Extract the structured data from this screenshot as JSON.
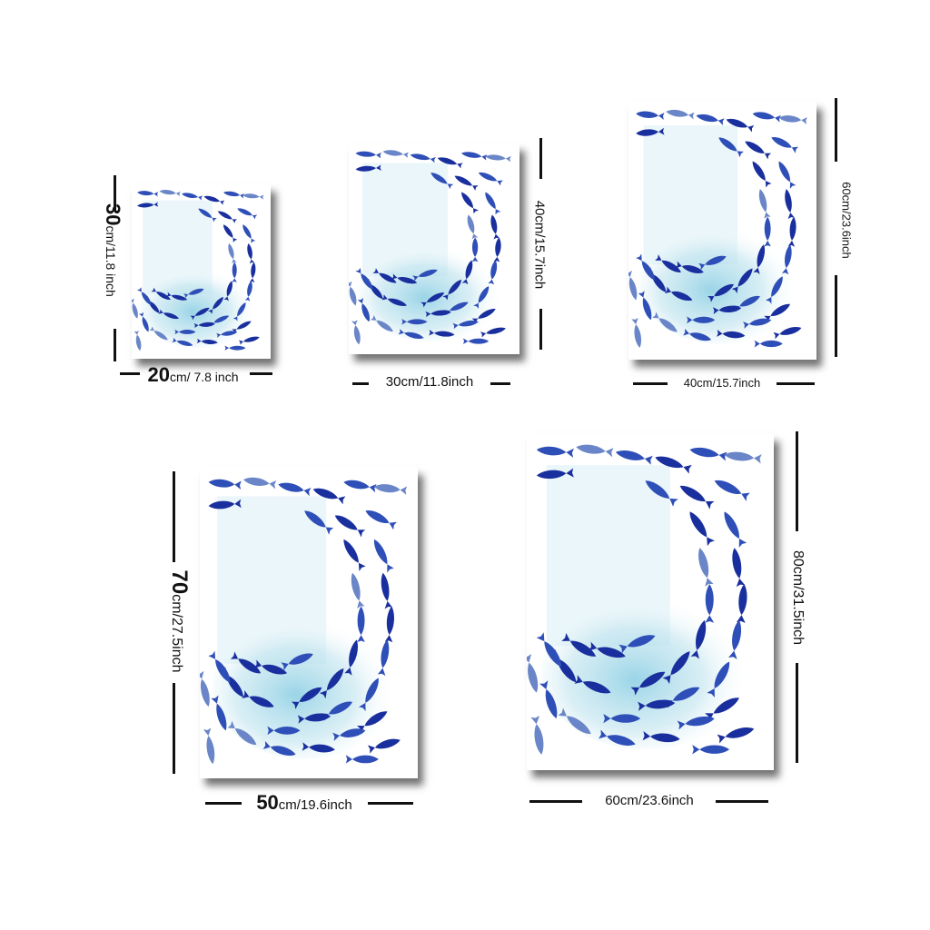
{
  "artwork": {
    "subject": "school of blue fish swirling on white and light-blue textured background",
    "colors": {
      "fish_dark": "#1a2f9e",
      "fish_mid": "#2f4fb8",
      "fish_light": "#6a86c8",
      "wash": "#9fd3e3",
      "background": "#ffffff"
    }
  },
  "sizes": [
    {
      "id": "size-20x30",
      "width_num": "20",
      "width_unit": "cm/ 7.8 inch",
      "height_num": "30",
      "height_unit": "cm/11.8 inch"
    },
    {
      "id": "size-30x40",
      "width_text": "30cm/11.8inch",
      "height_text": "40cm/15.7inch"
    },
    {
      "id": "size-40x60",
      "width_text": "40cm/15.7inch",
      "height_text": "60cm/23.6inch"
    },
    {
      "id": "size-50x70",
      "width_num": "50",
      "width_unit": "cm/19.6inch",
      "height_num": "70",
      "height_unit": "cm/27.5inch"
    },
    {
      "id": "size-60x80",
      "width_text": "60cm/23.6inch",
      "height_text": "80cm/31.5inch"
    }
  ]
}
